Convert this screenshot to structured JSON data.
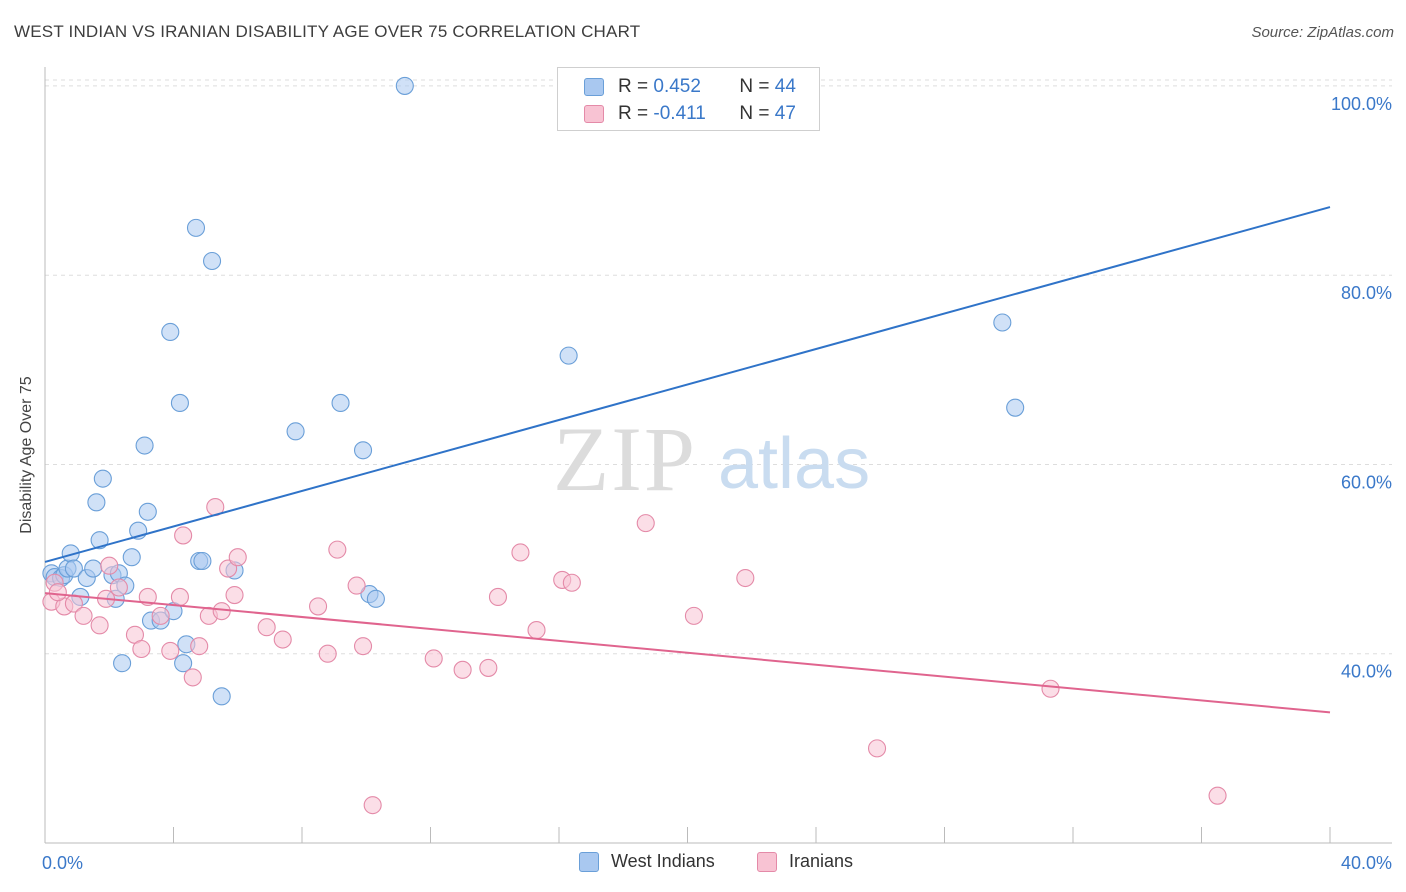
{
  "title": "WEST INDIAN VS IRANIAN DISABILITY AGE OVER 75 CORRELATION CHART",
  "source": "Source: ZipAtlas.com",
  "watermark": {
    "zip": "ZIP",
    "atlas": "atlas"
  },
  "legend": {
    "rows": [
      {
        "r_label": "R =",
        "r_value": "0.452",
        "n_label": "N =",
        "n_value": "44",
        "color": "#a9c8f0",
        "border": "#6a9fd8"
      },
      {
        "r_label": "R =",
        "r_value": "-0.411",
        "n_label": "N =",
        "n_value": "47",
        "color": "#f8c3d3",
        "border": "#e48aa8"
      }
    ]
  },
  "bottom_legend": [
    {
      "label": "West Indians",
      "color": "#a9c8f0",
      "border": "#6a9fd8"
    },
    {
      "label": "Iranians",
      "color": "#f8c3d3",
      "border": "#e48aa8"
    }
  ],
  "chart_data": {
    "type": "scatter",
    "title": "WEST INDIAN VS IRANIAN DISABILITY AGE OVER 75 CORRELATION CHART",
    "xlabel": "",
    "ylabel": "Disability Age Over 75",
    "xlim": [
      0,
      40
    ],
    "ylim": [
      20,
      102
    ],
    "x_tick_labels": [
      "0.0%",
      "40.0%"
    ],
    "y_ticks": [
      40,
      60,
      80,
      100
    ],
    "y_tick_labels": [
      "40.0%",
      "60.0%",
      "80.0%",
      "100.0%"
    ],
    "grid": true,
    "legend_position": "top-center",
    "series": [
      {
        "name": "West Indians",
        "color": "#6a9fd8",
        "fill": "#a9c8f0",
        "trend_color": "#2f73c8",
        "trend": {
          "x": [
            0,
            40
          ],
          "y": [
            49.7,
            87.2
          ]
        },
        "points": [
          [
            0.2,
            48.5
          ],
          [
            0.3,
            48.1
          ],
          [
            0.5,
            48.0
          ],
          [
            0.6,
            48.3
          ],
          [
            0.7,
            49.0
          ],
          [
            0.8,
            50.6
          ],
          [
            0.9,
            49.0
          ],
          [
            1.1,
            46.0
          ],
          [
            1.3,
            48.0
          ],
          [
            1.5,
            49.0
          ],
          [
            1.6,
            56.0
          ],
          [
            1.7,
            52.0
          ],
          [
            1.8,
            58.5
          ],
          [
            2.1,
            48.3
          ],
          [
            2.2,
            45.8
          ],
          [
            2.3,
            48.5
          ],
          [
            2.5,
            47.2
          ],
          [
            2.7,
            50.2
          ],
          [
            2.9,
            53.0
          ],
          [
            3.1,
            62.0
          ],
          [
            3.2,
            55.0
          ],
          [
            3.3,
            43.5
          ],
          [
            3.6,
            43.5
          ],
          [
            3.9,
            74.0
          ],
          [
            4.0,
            44.5
          ],
          [
            4.2,
            66.5
          ],
          [
            4.3,
            39.0
          ],
          [
            4.4,
            41.0
          ],
          [
            4.7,
            85.0
          ],
          [
            4.8,
            49.8
          ],
          [
            4.9,
            49.8
          ],
          [
            5.2,
            81.5
          ],
          [
            5.5,
            35.5
          ],
          [
            5.9,
            48.8
          ],
          [
            7.8,
            63.5
          ],
          [
            9.2,
            66.5
          ],
          [
            9.9,
            61.5
          ],
          [
            10.1,
            46.3
          ],
          [
            10.3,
            45.8
          ],
          [
            11.2,
            100.0
          ],
          [
            16.3,
            71.5
          ],
          [
            2.4,
            39.0
          ],
          [
            29.8,
            75.0
          ],
          [
            30.2,
            66.0
          ]
        ]
      },
      {
        "name": "Iranians",
        "color": "#e48aa8",
        "fill": "#f8c3d3",
        "trend_color": "#e0648e",
        "trend": {
          "x": [
            0,
            40
          ],
          "y": [
            46.4,
            33.8
          ]
        },
        "points": [
          [
            0.2,
            45.5
          ],
          [
            0.3,
            47.5
          ],
          [
            0.6,
            45.0
          ],
          [
            0.9,
            45.3
          ],
          [
            1.2,
            44.0
          ],
          [
            1.7,
            43.0
          ],
          [
            1.9,
            45.8
          ],
          [
            2.0,
            49.3
          ],
          [
            2.3,
            47.0
          ],
          [
            2.8,
            42.0
          ],
          [
            3.0,
            40.5
          ],
          [
            3.2,
            46.0
          ],
          [
            3.6,
            44.0
          ],
          [
            3.9,
            40.3
          ],
          [
            4.2,
            46.0
          ],
          [
            4.3,
            52.5
          ],
          [
            4.6,
            37.5
          ],
          [
            4.8,
            40.8
          ],
          [
            5.1,
            44.0
          ],
          [
            5.3,
            55.5
          ],
          [
            5.5,
            44.5
          ],
          [
            5.7,
            49.0
          ],
          [
            5.9,
            46.2
          ],
          [
            6.0,
            50.2
          ],
          [
            6.9,
            42.8
          ],
          [
            7.4,
            41.5
          ],
          [
            8.5,
            45.0
          ],
          [
            8.8,
            40.0
          ],
          [
            9.1,
            51.0
          ],
          [
            9.7,
            47.2
          ],
          [
            9.9,
            40.8
          ],
          [
            10.2,
            24.0
          ],
          [
            12.1,
            39.5
          ],
          [
            13.0,
            38.3
          ],
          [
            13.8,
            38.5
          ],
          [
            14.1,
            46.0
          ],
          [
            14.8,
            50.7
          ],
          [
            15.3,
            42.5
          ],
          [
            16.1,
            47.8
          ],
          [
            16.4,
            47.5
          ],
          [
            18.7,
            53.8
          ],
          [
            20.2,
            44.0
          ],
          [
            21.8,
            48.0
          ],
          [
            25.9,
            30.0
          ],
          [
            31.3,
            36.3
          ],
          [
            36.5,
            25.0
          ],
          [
            0.4,
            46.5
          ]
        ]
      }
    ]
  }
}
